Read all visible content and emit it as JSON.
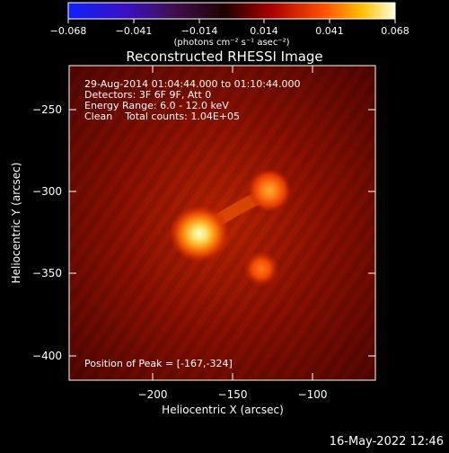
{
  "colorbar": {
    "ticks": [
      "−0.068",
      "−0.041",
      "−0.014",
      "0.014",
      "0.041",
      "0.068"
    ],
    "unit_label": "(photons cm⁻² s⁻¹ asec⁻²)"
  },
  "title": "Reconstructed RHESSI Image",
  "info": {
    "line1": "29-Aug-2014 01:04:44.000 to 01:10:44.000",
    "line2": "Detectors: 3F 6F 9F, Att 0",
    "line3": "Energy Range: 6.0 - 12.0 keV",
    "line4": "Clean    Total counts: 1.04E+05"
  },
  "peak_label": "Position of Peak = [-167,-324]",
  "axes": {
    "xlabel": "Heliocentric X (arcsec)",
    "ylabel": "Heliocentric Y (arcsec)",
    "xticks": [
      "−200",
      "−150",
      "−100"
    ],
    "yticks": [
      "−250",
      "−300",
      "−350",
      "−400"
    ]
  },
  "footer_date": "16-May-2022 12:46"
}
